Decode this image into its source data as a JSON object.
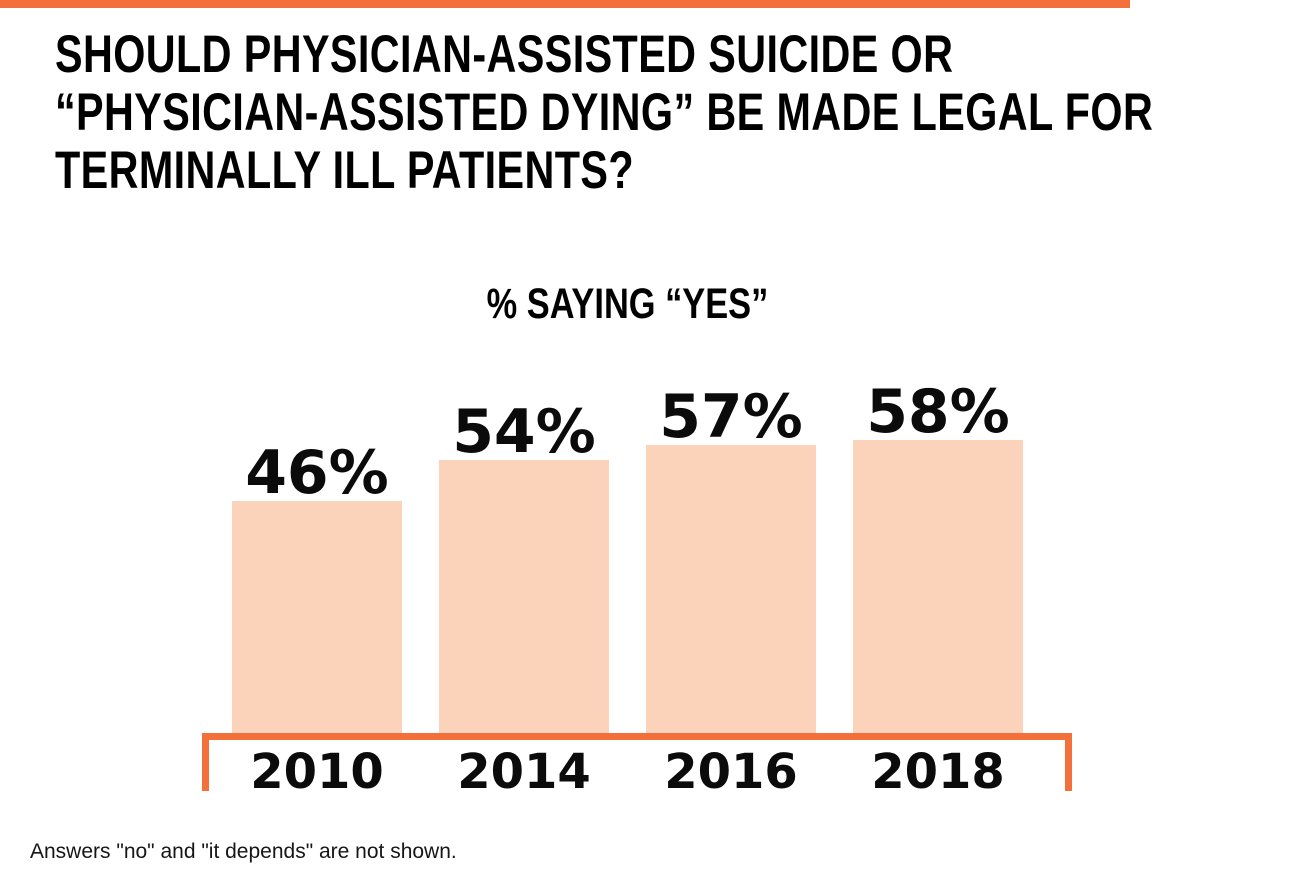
{
  "page": {
    "title_lines": [
      "SHOULD PHYSICIAN-ASSISTED SUICIDE OR",
      "“PHYSICIAN-ASSISTED DYING” BE MADE LEGAL FOR",
      "TERMINALLY ILL PATIENTS?"
    ],
    "footnote": "Answers \"no\" and \"it depends\" are not shown."
  },
  "chart_data": {
    "type": "bar",
    "title": "% SAYING “YES”",
    "categories": [
      "2010",
      "2014",
      "2016",
      "2018"
    ],
    "values": [
      46,
      54,
      57,
      58
    ],
    "value_labels": [
      "46%",
      "54%",
      "57%",
      "58%"
    ],
    "xlabel": "",
    "ylabel": "",
    "ylim": [
      0,
      60
    ],
    "grid": false,
    "legend": "none",
    "annotations": "Answers \"no\" and \"it depends\" are not shown."
  },
  "colors": {
    "accent_orange": "#F4703B",
    "bar_peach": "#FAD3BA",
    "text_black": "#000000"
  }
}
